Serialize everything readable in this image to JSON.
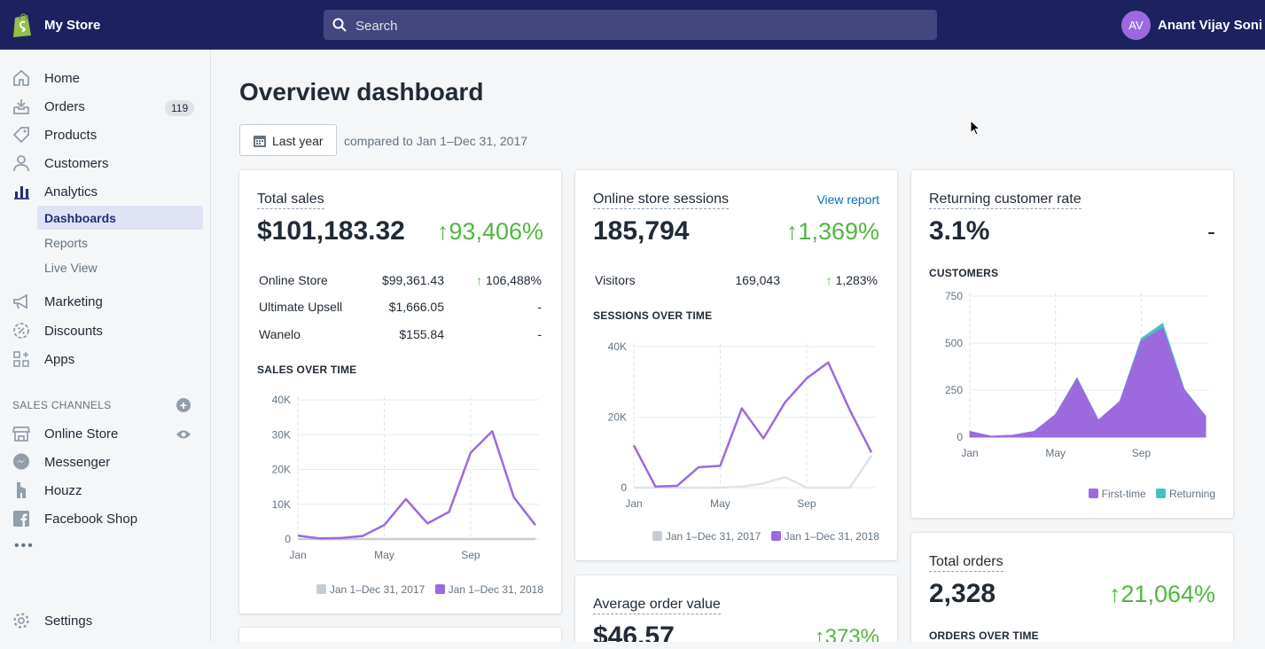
{
  "topbar": {
    "store_name": "My Store",
    "search_placeholder": "Search",
    "avatar_initials": "AV",
    "user_name": "Anant Vijay Soni"
  },
  "sidebar": {
    "items": [
      {
        "label": "Home",
        "icon": "home-icon"
      },
      {
        "label": "Orders",
        "icon": "orders-icon",
        "badge": "119"
      },
      {
        "label": "Products",
        "icon": "tag-icon"
      },
      {
        "label": "Customers",
        "icon": "person-icon"
      },
      {
        "label": "Analytics",
        "icon": "bar-chart-icon"
      },
      {
        "label": "Marketing",
        "icon": "megaphone-icon"
      },
      {
        "label": "Discounts",
        "icon": "discount-icon"
      },
      {
        "label": "Apps",
        "icon": "apps-icon"
      }
    ],
    "analytics_sub": [
      {
        "label": "Dashboards",
        "active": true
      },
      {
        "label": "Reports"
      },
      {
        "label": "Live View"
      }
    ],
    "sales_channels_label": "SALES CHANNELS",
    "channels": [
      {
        "label": "Online Store",
        "icon": "store-icon"
      },
      {
        "label": "Messenger",
        "icon": "messenger-icon"
      },
      {
        "label": "Houzz",
        "icon": "houzz-icon"
      },
      {
        "label": "Facebook Shop",
        "icon": "facebook-icon"
      }
    ],
    "more": "•••",
    "settings_label": "Settings"
  },
  "main": {
    "title": "Overview dashboard",
    "date_button": "Last year",
    "compare_text": "compared to Jan 1–Dec 31, 2017"
  },
  "cards": {
    "total_sales": {
      "title": "Total sales",
      "value": "$101,183.32",
      "change": "93,406%",
      "rows": [
        {
          "name": "Online Store",
          "value": "$99,361.43",
          "change": "106,488%"
        },
        {
          "name": "Ultimate Upsell",
          "value": "$1,666.05",
          "change": "-"
        },
        {
          "name": "Wanelo",
          "value": "$155.84",
          "change": "-"
        }
      ],
      "section": "SALES OVER TIME",
      "legend": [
        "Jan 1–Dec 31, 2017",
        "Jan 1–Dec 31, 2018"
      ]
    },
    "sessions": {
      "title": "Online store sessions",
      "link": "View report",
      "value": "185,794",
      "change": "1,369%",
      "row": {
        "name": "Visitors",
        "value": "169,043",
        "change": "1,283%"
      },
      "section": "SESSIONS OVER TIME",
      "legend": [
        "Jan 1–Dec 31, 2017",
        "Jan 1–Dec 31, 2018"
      ]
    },
    "returning": {
      "title": "Returning customer rate",
      "value": "3.1%",
      "change": "-",
      "section": "CUSTOMERS",
      "legend": [
        "First-time",
        "Returning"
      ]
    },
    "aov": {
      "title": "Average order value",
      "value": "$46.57",
      "change": "373%"
    },
    "orders": {
      "title": "Total orders",
      "value": "2,328",
      "change": "21,064%",
      "section": "ORDERS OVER TIME"
    }
  },
  "colors": {
    "topbar": "#1c2260",
    "accent_purple": "#9c6ade",
    "teal": "#47c1bf",
    "gray_series": "#c4cdd5",
    "positive": "#50b83c",
    "link": "#006fbb"
  },
  "chart_data": [
    {
      "type": "line",
      "title": "SALES OVER TIME",
      "x": [
        "Jan",
        "Feb",
        "Mar",
        "Apr",
        "May",
        "Jun",
        "Jul",
        "Aug",
        "Sep",
        "Oct",
        "Nov",
        "Dec"
      ],
      "xticks": [
        "Jan",
        "May",
        "Sep"
      ],
      "yticks": [
        "0",
        "10K",
        "20K",
        "30K",
        "40K"
      ],
      "ylim": [
        0,
        40000
      ],
      "series": [
        {
          "name": "Jan 1–Dec 31, 2017",
          "color": "#c4cdd5",
          "values": [
            0,
            0,
            0,
            0,
            0,
            0,
            0,
            0,
            0,
            0,
            0,
            0
          ]
        },
        {
          "name": "Jan 1–Dec 31, 2018",
          "color": "#9c6ade",
          "values": [
            1000,
            200,
            300,
            900,
            4000,
            11500,
            4500,
            7800,
            24800,
            31000,
            12000,
            4000
          ]
        }
      ]
    },
    {
      "type": "line",
      "title": "SESSIONS OVER TIME",
      "x": [
        "Jan",
        "Feb",
        "Mar",
        "Apr",
        "May",
        "Jun",
        "Jul",
        "Aug",
        "Sep",
        "Oct",
        "Nov",
        "Dec"
      ],
      "xticks": [
        "Jan",
        "May",
        "Sep"
      ],
      "yticks": [
        "0",
        "20K",
        "40K"
      ],
      "ylim": [
        0,
        40000
      ],
      "series": [
        {
          "name": "Jan 1–Dec 31, 2017",
          "color": "#dfe3e8",
          "values": [
            0,
            0,
            0,
            0,
            0,
            300,
            1200,
            3000,
            0,
            0,
            0,
            9000
          ]
        },
        {
          "name": "Jan 1–Dec 31, 2018",
          "color": "#9c6ade",
          "values": [
            12000,
            300,
            500,
            5800,
            6200,
            22500,
            14000,
            24200,
            31000,
            35500,
            22000,
            10000
          ]
        }
      ]
    },
    {
      "type": "area",
      "title": "CUSTOMERS",
      "x": [
        "Jan",
        "Feb",
        "Mar",
        "Apr",
        "May",
        "Jun",
        "Jul",
        "Aug",
        "Sep",
        "Oct",
        "Nov",
        "Dec"
      ],
      "xticks": [
        "Jan",
        "May",
        "Sep"
      ],
      "yticks": [
        "0",
        "250",
        "500",
        "750"
      ],
      "ylim": [
        0,
        750
      ],
      "series": [
        {
          "name": "First-time",
          "color": "#9c6ade",
          "values": [
            30,
            5,
            10,
            30,
            120,
            310,
            90,
            190,
            510,
            580,
            250,
            110
          ]
        },
        {
          "name": "Returning",
          "color": "#47c1bf",
          "values": [
            0,
            0,
            0,
            0,
            0,
            5,
            0,
            0,
            15,
            25,
            5,
            2
          ]
        }
      ]
    }
  ]
}
